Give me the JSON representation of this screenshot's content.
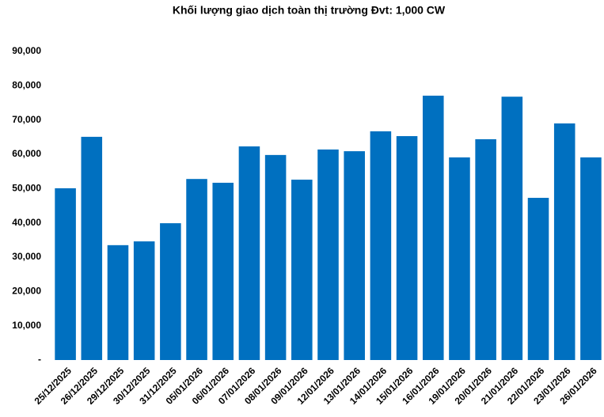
{
  "chart_data": {
    "type": "bar",
    "title": "Khối lượng giao dịch toàn thị trường Đvt: 1,000 CW",
    "categories": [
      "25/12/2025",
      "26/12/2025",
      "29/12/2025",
      "30/12/2025",
      "31/12/2025",
      "05/01/2026",
      "06/01/2026",
      "07/01/2026",
      "08/01/2026",
      "09/01/2026",
      "12/01/2026",
      "13/01/2026",
      "14/01/2026",
      "15/01/2026",
      "16/01/2026",
      "19/01/2026",
      "20/01/2026",
      "21/01/2026",
      "22/01/2026",
      "23/01/2026",
      "26/01/2026"
    ],
    "values": [
      50100,
      65100,
      33500,
      34600,
      39900,
      52800,
      51700,
      62300,
      59800,
      52600,
      61400,
      60900,
      66700,
      65300,
      77100,
      59100,
      64400,
      76800,
      47300,
      69000,
      59100
    ],
    "color": "#0070c0",
    "ylim": [
      0,
      90000
    ],
    "yticks": [
      {
        "value": 0,
        "label": "-"
      },
      {
        "value": 10000,
        "label": "10,000"
      },
      {
        "value": 20000,
        "label": "20,000"
      },
      {
        "value": 30000,
        "label": "30,000"
      },
      {
        "value": 40000,
        "label": "40,000"
      },
      {
        "value": 50000,
        "label": "50,000"
      },
      {
        "value": 60000,
        "label": "60,000"
      },
      {
        "value": 70000,
        "label": "70,000"
      },
      {
        "value": 80000,
        "label": "80,000"
      },
      {
        "value": 90000,
        "label": "90,000"
      }
    ],
    "grid": false
  }
}
